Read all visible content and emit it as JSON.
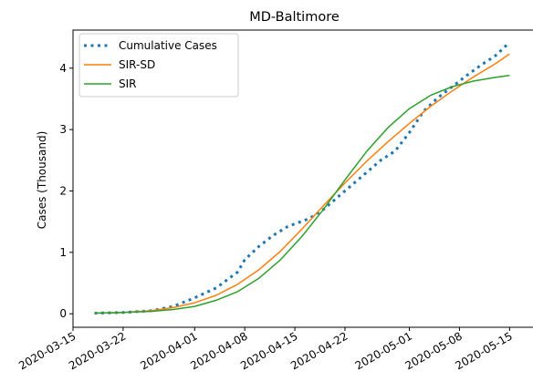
{
  "chart_data": {
    "type": "line",
    "title": "MD-Baltimore",
    "xlabel": "",
    "ylabel": "Cases (Thousand)",
    "x_range": [
      "2020-03-15",
      "2020-05-17"
    ],
    "ylim": [
      -0.22,
      4.62
    ],
    "x_ticks": [
      "2020-03-15",
      "2020-03-22",
      "2020-04-01",
      "2020-04-08",
      "2020-04-15",
      "2020-04-22",
      "2020-05-01",
      "2020-05-08",
      "2020-05-15"
    ],
    "y_ticks": [
      0,
      1,
      2,
      3,
      4
    ],
    "grid": false,
    "legend_position": "upper-left",
    "series": [
      {
        "name": "Cumulative Cases",
        "style": "dotted",
        "color": "#1f77b4",
        "points": [
          [
            "2020-03-18",
            0.01
          ],
          [
            "2020-03-22",
            0.02
          ],
          [
            "2020-03-26",
            0.05
          ],
          [
            "2020-03-29",
            0.12
          ],
          [
            "2020-04-01",
            0.26
          ],
          [
            "2020-04-04",
            0.42
          ],
          [
            "2020-04-07",
            0.68
          ],
          [
            "2020-04-08",
            0.88
          ],
          [
            "2020-04-10",
            1.1
          ],
          [
            "2020-04-12",
            1.28
          ],
          [
            "2020-04-14",
            1.42
          ],
          [
            "2020-04-17",
            1.55
          ],
          [
            "2020-04-19",
            1.7
          ],
          [
            "2020-04-21",
            1.9
          ],
          [
            "2020-04-23",
            2.1
          ],
          [
            "2020-04-25",
            2.3
          ],
          [
            "2020-04-27",
            2.5
          ],
          [
            "2020-04-29",
            2.65
          ],
          [
            "2020-05-01",
            2.95
          ],
          [
            "2020-05-03",
            3.3
          ],
          [
            "2020-05-05",
            3.52
          ],
          [
            "2020-05-07",
            3.7
          ],
          [
            "2020-05-09",
            3.88
          ],
          [
            "2020-05-11",
            4.05
          ],
          [
            "2020-05-13",
            4.2
          ],
          [
            "2020-05-15",
            4.42
          ]
        ]
      },
      {
        "name": "SIR-SD",
        "style": "solid",
        "color": "#ff7f0e",
        "points": [
          [
            "2020-03-18",
            0.01
          ],
          [
            "2020-03-22",
            0.02
          ],
          [
            "2020-03-26",
            0.05
          ],
          [
            "2020-03-29",
            0.1
          ],
          [
            "2020-04-01",
            0.18
          ],
          [
            "2020-04-04",
            0.3
          ],
          [
            "2020-04-07",
            0.48
          ],
          [
            "2020-04-10",
            0.72
          ],
          [
            "2020-04-13",
            1.02
          ],
          [
            "2020-04-16",
            1.38
          ],
          [
            "2020-04-19",
            1.76
          ],
          [
            "2020-04-22",
            2.13
          ],
          [
            "2020-04-25",
            2.48
          ],
          [
            "2020-04-28",
            2.8
          ],
          [
            "2020-05-01",
            3.1
          ],
          [
            "2020-05-04",
            3.38
          ],
          [
            "2020-05-07",
            3.63
          ],
          [
            "2020-05-10",
            3.86
          ],
          [
            "2020-05-13",
            4.07
          ],
          [
            "2020-05-15",
            4.23
          ]
        ]
      },
      {
        "name": "SIR",
        "style": "solid",
        "color": "#2ca02c",
        "points": [
          [
            "2020-03-18",
            0.01
          ],
          [
            "2020-03-22",
            0.02
          ],
          [
            "2020-03-26",
            0.04
          ],
          [
            "2020-03-29",
            0.07
          ],
          [
            "2020-04-01",
            0.12
          ],
          [
            "2020-04-04",
            0.22
          ],
          [
            "2020-04-07",
            0.36
          ],
          [
            "2020-04-10",
            0.58
          ],
          [
            "2020-04-13",
            0.88
          ],
          [
            "2020-04-16",
            1.26
          ],
          [
            "2020-04-19",
            1.7
          ],
          [
            "2020-04-22",
            2.18
          ],
          [
            "2020-04-25",
            2.64
          ],
          [
            "2020-04-28",
            3.03
          ],
          [
            "2020-05-01",
            3.34
          ],
          [
            "2020-05-04",
            3.56
          ],
          [
            "2020-05-07",
            3.7
          ],
          [
            "2020-05-10",
            3.79
          ],
          [
            "2020-05-13",
            3.85
          ],
          [
            "2020-05-15",
            3.88
          ]
        ]
      }
    ]
  }
}
